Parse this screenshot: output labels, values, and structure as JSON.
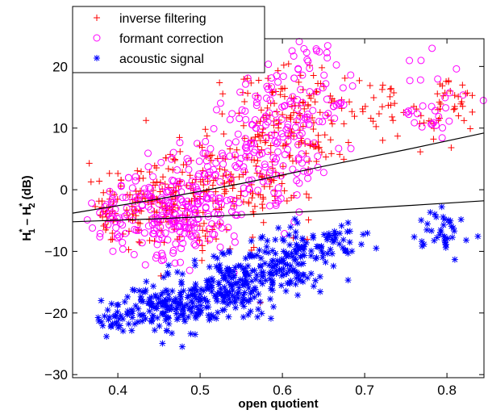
{
  "chart_data": {
    "type": "scatter",
    "title": "",
    "xlabel": "open quotient",
    "ylabel": {
      "base": "H",
      "sup1": "*",
      "sub1": "1",
      "sep": " – ",
      "base2": "H",
      "sup2": "*",
      "sub2": "2",
      "unit": " (dB)"
    },
    "xlim": [
      0.345,
      0.845
    ],
    "ylim": [
      -30.5,
      24.5
    ],
    "xticks": [
      "0.4",
      "0.5",
      "0.6",
      "0.7",
      "0.8"
    ],
    "xtick_values": [
      0.4,
      0.5,
      0.6,
      0.7,
      0.8
    ],
    "yticks": [
      "−30",
      "−20",
      "−10",
      "0",
      "10",
      "20"
    ],
    "ytick_values": [
      -30,
      -20,
      -10,
      0,
      10,
      20
    ],
    "grid": false,
    "legend_position": "top-left",
    "series": [
      {
        "name": "inverse filtering",
        "marker": "+",
        "color": "#ff0000",
        "clusters": [
          {
            "x": 0.39,
            "y": -3,
            "sx": 0.012,
            "sy": 2.5,
            "n": 40
          },
          {
            "x": 0.45,
            "y": -2,
            "sx": 0.03,
            "sy": 4,
            "n": 140
          },
          {
            "x": 0.52,
            "y": 0,
            "sx": 0.025,
            "sy": 4,
            "n": 90
          },
          {
            "x": 0.58,
            "y": 6,
            "sx": 0.03,
            "sy": 6,
            "n": 120
          },
          {
            "x": 0.63,
            "y": 11,
            "sx": 0.025,
            "sy": 6,
            "n": 90
          },
          {
            "x": 0.7,
            "y": 13,
            "sx": 0.03,
            "sy": 3,
            "n": 35
          },
          {
            "x": 0.8,
            "y": 14,
            "sx": 0.025,
            "sy": 3,
            "n": 45
          }
        ]
      },
      {
        "name": "formant correction",
        "marker": "o",
        "color": "#ff00ff",
        "clusters": [
          {
            "x": 0.4,
            "y": -4,
            "sx": 0.015,
            "sy": 3,
            "n": 40
          },
          {
            "x": 0.46,
            "y": -4,
            "sx": 0.025,
            "sy": 3.5,
            "n": 160
          },
          {
            "x": 0.51,
            "y": 0,
            "sx": 0.02,
            "sy": 5,
            "n": 80
          },
          {
            "x": 0.58,
            "y": 8,
            "sx": 0.03,
            "sy": 7,
            "n": 130
          },
          {
            "x": 0.63,
            "y": 13,
            "sx": 0.025,
            "sy": 6,
            "n": 80
          },
          {
            "x": 0.79,
            "y": 15,
            "sx": 0.02,
            "sy": 4,
            "n": 30
          }
        ]
      },
      {
        "name": "acoustic signal",
        "marker": "*",
        "color": "#0000ff",
        "clusters": [
          {
            "x": 0.4,
            "y": -21,
            "sx": 0.015,
            "sy": 1.3,
            "n": 40
          },
          {
            "x": 0.47,
            "y": -18.5,
            "sx": 0.025,
            "sy": 2.2,
            "n": 170
          },
          {
            "x": 0.54,
            "y": -15.5,
            "sx": 0.025,
            "sy": 2.5,
            "n": 150
          },
          {
            "x": 0.61,
            "y": -11.5,
            "sx": 0.025,
            "sy": 2.5,
            "n": 130
          },
          {
            "x": 0.67,
            "y": -8,
            "sx": 0.015,
            "sy": 1.5,
            "n": 40
          },
          {
            "x": 0.8,
            "y": -7,
            "sx": 0.02,
            "sy": 2,
            "n": 40
          }
        ]
      }
    ],
    "curves": [
      {
        "color": "#000000",
        "x": [
          0.345,
          0.45,
          0.55,
          0.65,
          0.75,
          0.845
        ],
        "y": [
          -3.8,
          -1.5,
          1.0,
          3.8,
          6.5,
          9.2
        ]
      },
      {
        "color": "#000000",
        "x": [
          0.345,
          0.45,
          0.55,
          0.65,
          0.75,
          0.845
        ],
        "y": [
          -5.2,
          -4.7,
          -4.1,
          -3.4,
          -2.6,
          -1.8
        ]
      }
    ]
  }
}
